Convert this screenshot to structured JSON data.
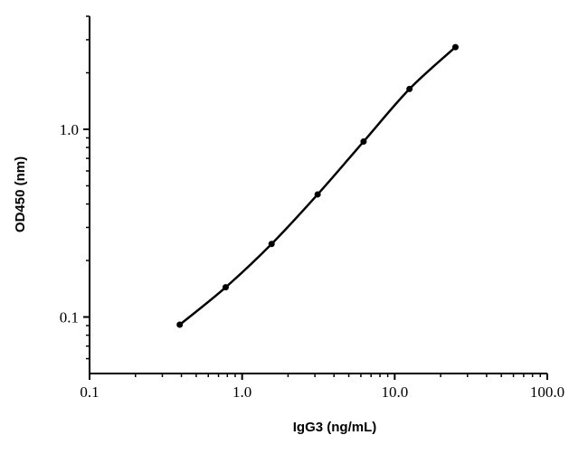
{
  "chart_data": {
    "type": "line",
    "xlabel": "IgG3 (ng/mL)",
    "ylabel": "OD450 (nm)",
    "x": [
      0.39,
      0.78,
      1.56,
      3.125,
      6.25,
      12.5,
      25
    ],
    "series": [
      {
        "color": "#000000",
        "values": [
          0.091,
          0.144,
          0.245,
          0.45,
          0.86,
          1.64,
          2.74
        ]
      }
    ],
    "xscale": "log",
    "yscale": "log",
    "xlim": [
      0.1,
      100
    ],
    "ylim": [
      0.05,
      4
    ],
    "xticks": [
      0.1,
      {
        "value": 1,
        "label": "1.0"
      },
      {
        "value": 10,
        "label": "10.0"
      },
      {
        "value": 100,
        "label": "100.0"
      }
    ],
    "yticks": [
      0.1,
      {
        "value": 1,
        "label": "1.0"
      }
    ],
    "xminorticks": [
      0.2,
      0.3,
      0.4,
      0.5,
      0.6,
      0.7,
      0.8,
      0.9,
      2,
      3,
      4,
      5,
      6,
      7,
      8,
      9,
      20,
      30,
      40,
      50,
      60,
      70,
      80,
      90
    ],
    "yminorticks": [
      0.06,
      0.07,
      0.08,
      0.09,
      0.2,
      0.3,
      0.4,
      0.5,
      0.6,
      0.7,
      0.8,
      0.9,
      2,
      3,
      4
    ]
  }
}
